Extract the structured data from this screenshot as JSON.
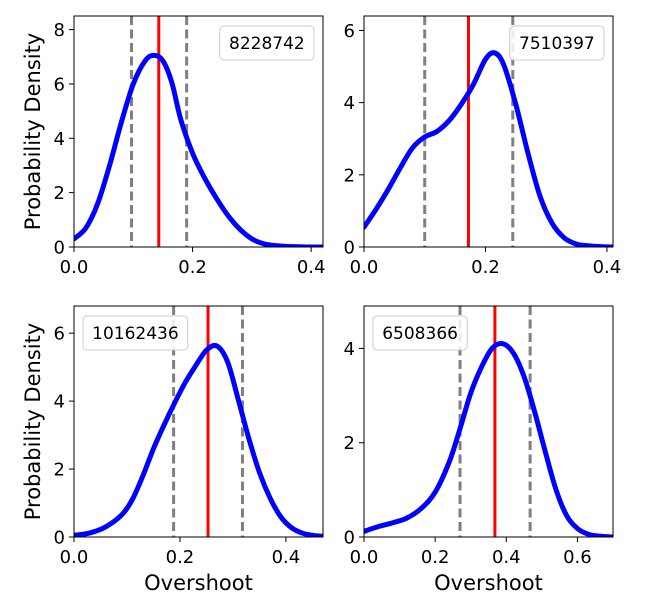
{
  "chart_data": [
    {
      "type": "line",
      "legend": "8228742",
      "legend_position": "top-right",
      "xlim": [
        0,
        0.42
      ],
      "ylim": [
        0,
        8.5
      ],
      "xticks": [
        0.0,
        0.2,
        0.4
      ],
      "xtick_labels": [
        "0.0",
        "0.2",
        "0.4"
      ],
      "yticks": [
        0,
        2,
        4,
        6,
        8
      ],
      "ytick_labels": [
        "0",
        "2",
        "4",
        "6",
        "8"
      ],
      "xlabel": "",
      "ylabel": "Probability Density",
      "median": 0.143,
      "ci": [
        0.097,
        0.19
      ],
      "series": [
        {
          "name": "density",
          "color": "#0000ff",
          "x": [
            0.0,
            0.02,
            0.04,
            0.06,
            0.08,
            0.1,
            0.12,
            0.135,
            0.15,
            0.165,
            0.18,
            0.2,
            0.22,
            0.24,
            0.26,
            0.28,
            0.3,
            0.32,
            0.34,
            0.36,
            0.38,
            0.4,
            0.42
          ],
          "y": [
            0.3,
            0.7,
            1.6,
            3.0,
            4.6,
            6.0,
            6.85,
            7.05,
            6.85,
            6.05,
            4.7,
            3.45,
            2.55,
            1.8,
            1.15,
            0.65,
            0.3,
            0.12,
            0.05,
            0.02,
            0.01,
            0.0,
            0.0
          ]
        }
      ]
    },
    {
      "type": "line",
      "legend": "7510397",
      "legend_position": "top-right",
      "xlim": [
        0,
        0.41
      ],
      "ylim": [
        0,
        6.4
      ],
      "xticks": [
        0.0,
        0.2,
        0.4
      ],
      "xtick_labels": [
        "0.0",
        "0.2",
        "0.4"
      ],
      "yticks": [
        0,
        2,
        4,
        6
      ],
      "ytick_labels": [
        "0",
        "2",
        "4",
        "6"
      ],
      "xlabel": "",
      "ylabel": "",
      "median": 0.172,
      "ci": [
        0.1,
        0.245
      ],
      "series": [
        {
          "name": "density",
          "color": "#0000ff",
          "x": [
            0.0,
            0.02,
            0.04,
            0.06,
            0.08,
            0.1,
            0.12,
            0.14,
            0.16,
            0.18,
            0.2,
            0.215,
            0.23,
            0.25,
            0.27,
            0.29,
            0.31,
            0.33,
            0.35,
            0.37,
            0.39,
            0.41
          ],
          "y": [
            0.55,
            1.05,
            1.6,
            2.2,
            2.75,
            3.05,
            3.2,
            3.5,
            3.95,
            4.5,
            5.2,
            5.38,
            5.05,
            3.95,
            2.6,
            1.4,
            0.65,
            0.25,
            0.08,
            0.03,
            0.01,
            0.0
          ]
        }
      ]
    },
    {
      "type": "line",
      "legend": "10162436",
      "legend_position": "top-left",
      "xlim": [
        0,
        0.47
      ],
      "ylim": [
        0,
        6.8
      ],
      "xticks": [
        0.0,
        0.2,
        0.4
      ],
      "xtick_labels": [
        "0.0",
        "0.2",
        "0.4"
      ],
      "yticks": [
        0,
        2,
        4,
        6
      ],
      "ytick_labels": [
        "0",
        "2",
        "4",
        "6"
      ],
      "xlabel": "Overshoot",
      "ylabel": "Probability Density",
      "median": 0.253,
      "ci": [
        0.188,
        0.318
      ],
      "series": [
        {
          "name": "density",
          "color": "#0000ff",
          "x": [
            0.0,
            0.03,
            0.06,
            0.09,
            0.11,
            0.13,
            0.15,
            0.17,
            0.19,
            0.21,
            0.23,
            0.25,
            0.27,
            0.29,
            0.31,
            0.33,
            0.35,
            0.37,
            0.39,
            0.41,
            0.43,
            0.45,
            0.47
          ],
          "y": [
            0.05,
            0.12,
            0.3,
            0.65,
            1.1,
            1.8,
            2.6,
            3.3,
            3.95,
            4.55,
            5.05,
            5.5,
            5.62,
            5.15,
            4.05,
            2.9,
            1.9,
            1.15,
            0.6,
            0.28,
            0.12,
            0.05,
            0.02
          ]
        }
      ]
    },
    {
      "type": "line",
      "legend": "6508366",
      "legend_position": "top-left",
      "xlim": [
        0,
        0.7
      ],
      "ylim": [
        0,
        4.9
      ],
      "xticks": [
        0.0,
        0.2,
        0.4,
        0.6
      ],
      "xtick_labels": [
        "0.0",
        "0.2",
        "0.4",
        "0.6"
      ],
      "yticks": [
        0,
        2,
        4
      ],
      "ytick_labels": [
        "0",
        "2",
        "4"
      ],
      "xlabel": "Overshoot",
      "ylabel": "",
      "median": 0.368,
      "ci": [
        0.27,
        0.467
      ],
      "series": [
        {
          "name": "density",
          "color": "#0000ff",
          "x": [
            0.0,
            0.04,
            0.08,
            0.12,
            0.16,
            0.2,
            0.24,
            0.27,
            0.3,
            0.33,
            0.36,
            0.39,
            0.42,
            0.45,
            0.48,
            0.51,
            0.54,
            0.57,
            0.6,
            0.63,
            0.66,
            0.7
          ],
          "y": [
            0.12,
            0.22,
            0.3,
            0.4,
            0.6,
            0.95,
            1.6,
            2.3,
            3.05,
            3.6,
            4.0,
            4.1,
            3.9,
            3.4,
            2.65,
            1.8,
            1.0,
            0.45,
            0.18,
            0.06,
            0.02,
            0.0
          ]
        }
      ]
    }
  ],
  "colors": {
    "density": "#0000ff",
    "median": "#ff0000",
    "ci": "#808080"
  }
}
